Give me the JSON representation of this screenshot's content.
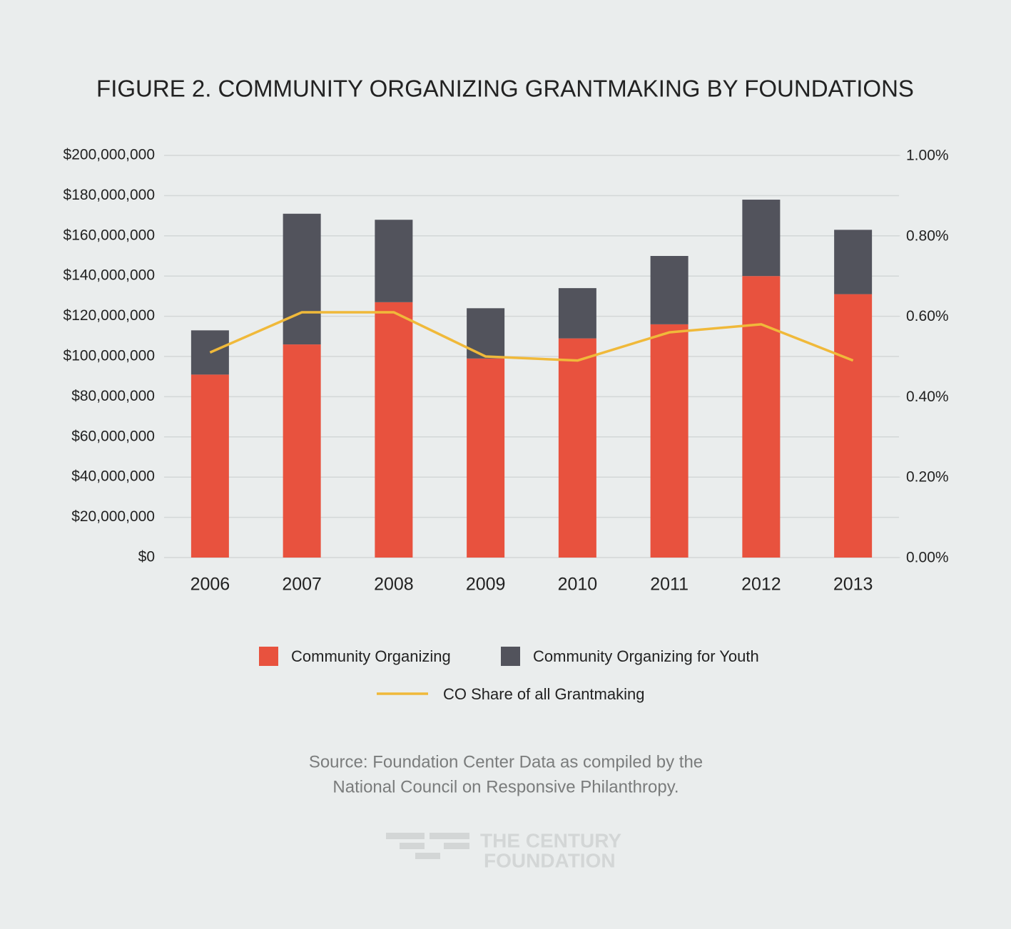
{
  "chart_data": {
    "type": "bar",
    "title": "FIGURE 2. COMMUNITY ORGANIZING GRANTMAKING BY FOUNDATIONS",
    "categories": [
      "2006",
      "2007",
      "2008",
      "2009",
      "2010",
      "2011",
      "2012",
      "2013"
    ],
    "stacked": true,
    "series": [
      {
        "name": "Community Organizing",
        "color": "#e8523e",
        "values": [
          91,
          106,
          127,
          99,
          109,
          116,
          140,
          131
        ]
      },
      {
        "name": "Community Organizing for Youth",
        "color": "#52535c",
        "values": [
          22,
          65,
          41,
          25,
          25,
          34,
          38,
          32
        ]
      },
      {
        "name": "CO Share of all Grantmaking",
        "type": "line",
        "axis": "y2",
        "color": "#f0b93a",
        "values": [
          0.51,
          0.61,
          0.61,
          0.5,
          0.49,
          0.56,
          0.58,
          0.49
        ]
      }
    ],
    "ylim": [
      0,
      200
    ],
    "yticks": [
      {
        "value": 0,
        "label": "$0"
      },
      {
        "value": 20,
        "label": "$20,000,000"
      },
      {
        "value": 40,
        "label": "$40,000,000"
      },
      {
        "value": 60,
        "label": "$60,000,000"
      },
      {
        "value": 80,
        "label": "$80,000,000"
      },
      {
        "value": 100,
        "label": "$100,000,000"
      },
      {
        "value": 120,
        "label": "$120,000,000"
      },
      {
        "value": 140,
        "label": "$140,000,000"
      },
      {
        "value": 160,
        "label": "$160,000,000"
      },
      {
        "value": 180,
        "label": "$180,000,000"
      },
      {
        "value": 200,
        "label": "$200,000,000"
      }
    ],
    "y2lim": [
      0,
      1
    ],
    "y2ticks": [
      {
        "value": 0,
        "label": "0.00%"
      },
      {
        "value": 0.2,
        "label": "0.20%"
      },
      {
        "value": 0.4,
        "label": "0.40%"
      },
      {
        "value": 0.6,
        "label": "0.60%"
      },
      {
        "value": 0.8,
        "label": "0.80%"
      },
      {
        "value": 1,
        "label": "1.00%"
      }
    ],
    "grid": true,
    "legend": "bottom",
    "source": [
      "Source: Foundation Center Data as compiled by the",
      "National Council on Responsive Philanthropy."
    ],
    "logo": [
      "THE CENTURY",
      "FOUNDATION"
    ]
  }
}
